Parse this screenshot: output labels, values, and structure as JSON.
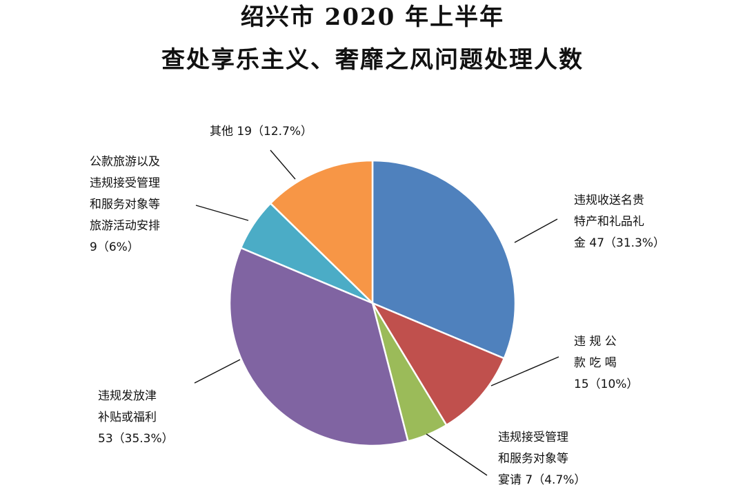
{
  "title": {
    "line1": "绍兴市 2020 年上半年",
    "line2": "查处享乐主义、奢靡之风问题处理人数"
  },
  "chart_data": {
    "type": "pie",
    "title": "绍兴市 2020 年上半年 查处享乐主义、奢靡之风问题处理人数",
    "slices": [
      {
        "name": "违规收送名贵特产和礼品礼金",
        "value": 47,
        "percent": "31.3%",
        "color": "#4F81BD",
        "label_lines": [
          "违规收送名贵",
          "特产和礼品礼",
          "金 47（31.3%）"
        ]
      },
      {
        "name": "违规公款吃喝",
        "value": 15,
        "percent": "10%",
        "color": "#C0504D",
        "label_lines": [
          "违 规 公",
          "款 吃 喝",
          "15（10%）"
        ]
      },
      {
        "name": "违规接受管理和服务对象等宴请",
        "value": 7,
        "percent": "4.7%",
        "color": "#9BBB59",
        "label_lines": [
          "违规接受管理",
          "和服务对象等",
          "宴请 7（4.7%）"
        ]
      },
      {
        "name": "违规发放津补贴或福利",
        "value": 53,
        "percent": "35.3%",
        "color": "#8064A2",
        "label_lines": [
          "违规发放津",
          "补贴或福利",
          "53（35.3%）"
        ]
      },
      {
        "name": "公款旅游以及违规接受管理和服务对象等旅游活动安排",
        "value": 9,
        "percent": "6%",
        "color": "#4BACC6",
        "label_lines": [
          "公款旅游以及",
          "违规接受管理",
          "和服务对象等",
          "旅游活动安排",
          "9（6%）"
        ]
      },
      {
        "name": "其他",
        "value": 19,
        "percent": "12.7%",
        "color": "#F79646",
        "label_lines": [
          "其他 19（12.7%）"
        ]
      }
    ],
    "legend": "none",
    "grid": false
  }
}
